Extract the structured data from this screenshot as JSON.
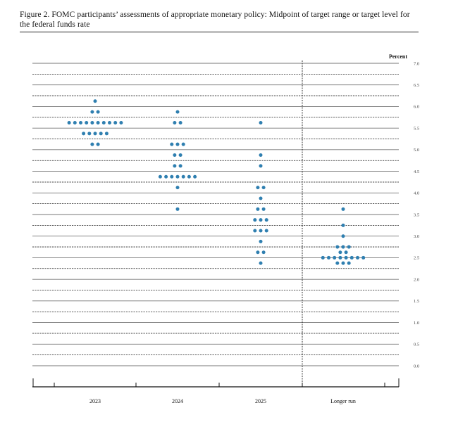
{
  "figure": {
    "title": "Figure 2.  FOMC participants’ assessments of appropriate monetary policy:  Midpoint of target range or target level for the federal funds rate"
  },
  "chart_data": {
    "type": "scatter",
    "style": "dot plot",
    "y_unit_label": "Percent",
    "ylim": [
      0.0,
      7.0
    ],
    "y_ticks": [
      "0.0",
      "0.5",
      "1.0",
      "1.5",
      "2.0",
      "2.5",
      "3.0",
      "3.5",
      "4.0",
      "4.5",
      "5.0",
      "5.5",
      "6.0",
      "6.5",
      "7.0"
    ],
    "categories": [
      "2023",
      "2024",
      "2025",
      "Longer run"
    ],
    "dot_color": "#2f7fb0",
    "dots": [
      {
        "category": "2023",
        "y": 6.125,
        "count": 1
      },
      {
        "category": "2023",
        "y": 5.875,
        "count": 2
      },
      {
        "category": "2023",
        "y": 5.625,
        "count": 10
      },
      {
        "category": "2023",
        "y": 5.375,
        "count": 5
      },
      {
        "category": "2023",
        "y": 5.125,
        "count": 2
      },
      {
        "category": "2024",
        "y": 5.875,
        "count": 1
      },
      {
        "category": "2024",
        "y": 5.625,
        "count": 2
      },
      {
        "category": "2024",
        "y": 5.125,
        "count": 3
      },
      {
        "category": "2024",
        "y": 4.875,
        "count": 2
      },
      {
        "category": "2024",
        "y": 4.625,
        "count": 2
      },
      {
        "category": "2024",
        "y": 4.375,
        "count": 7
      },
      {
        "category": "2024",
        "y": 4.125,
        "count": 1
      },
      {
        "category": "2024",
        "y": 3.625,
        "count": 1
      },
      {
        "category": "2025",
        "y": 5.625,
        "count": 1
      },
      {
        "category": "2025",
        "y": 4.875,
        "count": 1
      },
      {
        "category": "2025",
        "y": 4.625,
        "count": 1
      },
      {
        "category": "2025",
        "y": 4.125,
        "count": 2
      },
      {
        "category": "2025",
        "y": 3.875,
        "count": 1
      },
      {
        "category": "2025",
        "y": 3.625,
        "count": 2
      },
      {
        "category": "2025",
        "y": 3.375,
        "count": 3
      },
      {
        "category": "2025",
        "y": 3.125,
        "count": 3
      },
      {
        "category": "2025",
        "y": 2.875,
        "count": 1
      },
      {
        "category": "2025",
        "y": 2.625,
        "count": 2
      },
      {
        "category": "2025",
        "y": 2.375,
        "count": 1
      },
      {
        "category": "Longer run",
        "y": 3.625,
        "count": 1
      },
      {
        "category": "Longer run",
        "y": 3.25,
        "count": 1
      },
      {
        "category": "Longer run",
        "y": 3.0,
        "count": 1
      },
      {
        "category": "Longer run",
        "y": 2.75,
        "count": 3
      },
      {
        "category": "Longer run",
        "y": 2.625,
        "count": 2
      },
      {
        "category": "Longer run",
        "y": 2.5,
        "count": 8
      },
      {
        "category": "Longer run",
        "y": 2.375,
        "count": 3
      }
    ]
  }
}
